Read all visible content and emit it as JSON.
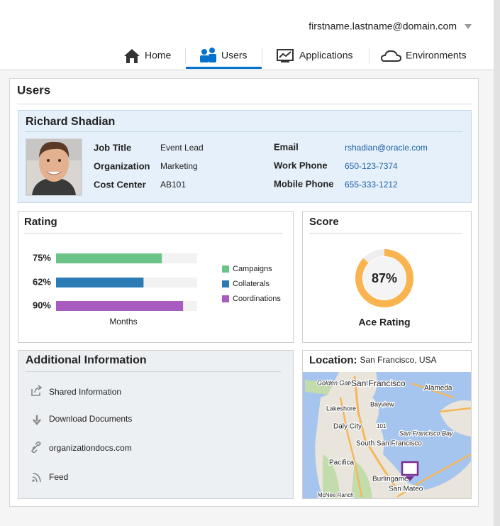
{
  "header": {
    "user_email": "firstname.lastname@domain.com",
    "tabs": [
      "Home",
      "Users",
      "Applications",
      "Environments"
    ],
    "active_tab": 1
  },
  "page_title": "Users",
  "profile": {
    "name": "Richard Shadian",
    "fields_left": [
      {
        "label": "Job Title",
        "value": "Event Lead"
      },
      {
        "label": "Organization",
        "value": "Marketing"
      },
      {
        "label": "Cost Center",
        "value": "AB101"
      }
    ],
    "fields_right": [
      {
        "label": "Email",
        "value": "rshadian@oracle.com"
      },
      {
        "label": "Work Phone",
        "value": "650-123-7374"
      },
      {
        "label": "Mobile Phone",
        "value": "655-333-1212"
      }
    ]
  },
  "chart_data": [
    {
      "type": "bar",
      "title": "Rating",
      "x_label": "Months",
      "xlim": [
        0,
        100
      ],
      "series": [
        {
          "name": "Campaigns",
          "color": "#6cc387",
          "values": [
            75
          ],
          "value_labels": [
            "75%"
          ]
        },
        {
          "name": "Collaterals",
          "color": "#2b7cb4",
          "values": [
            62
          ],
          "value_labels": [
            "62%"
          ]
        },
        {
          "name": "Coordinations",
          "color": "#a95cc0",
          "values": [
            90
          ],
          "value_labels": [
            "90%"
          ]
        }
      ]
    },
    {
      "type": "donut",
      "title": "Score",
      "ylim": [
        0,
        100
      ],
      "values": [
        87
      ],
      "value_labels": [
        "87%"
      ],
      "color": "#f9b450",
      "label": "Ace Rating"
    }
  ],
  "additional_info": {
    "title": "Additional Information",
    "items": [
      "Shared Information",
      "Download Documents",
      "organizationdocs.com",
      "Feed"
    ]
  },
  "location": {
    "label": "Location:",
    "value": "San Francisco, USA",
    "map_labels": [
      "Golden Gate Park",
      "San Francisco",
      "Alameda",
      "Lakeshore",
      "Bayview",
      "Daly City",
      "101",
      "San Francisco Bay",
      "South San Francisco",
      "Pacifica",
      "Burlingame",
      "San Mateo",
      "McNee Ranch"
    ]
  }
}
